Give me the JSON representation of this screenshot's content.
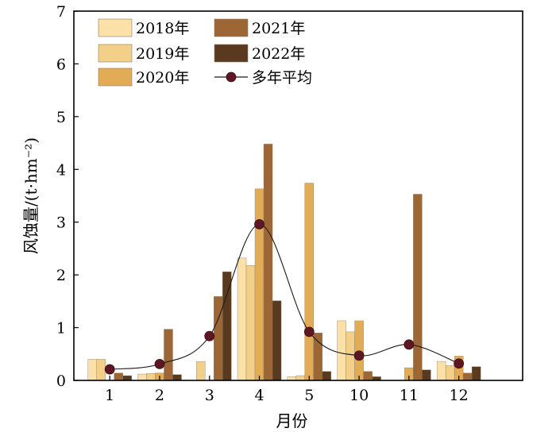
{
  "chart_data": {
    "type": "bar",
    "xlabel": "月份",
    "ylabel": "风蚀量/(t·hm⁻²)",
    "ylim": [
      0,
      7
    ],
    "yticks": [
      "0",
      "1",
      "2",
      "3",
      "4",
      "5",
      "6",
      "7"
    ],
    "categories": [
      "1",
      "2",
      "3",
      "4",
      "5",
      "10",
      "11",
      "12"
    ],
    "legend_position": "top-left",
    "grid": false,
    "series": [
      {
        "name": "2018年",
        "color": "#fbe0a8",
        "values": [
          0.4,
          0.12,
          0.0,
          2.32,
          0.07,
          1.13,
          0.0,
          0.36
        ]
      },
      {
        "name": "2019年",
        "color": "#f3d08a",
        "values": [
          0.4,
          0.13,
          0.36,
          2.18,
          0.09,
          0.92,
          0.0,
          0.28
        ]
      },
      {
        "name": "2020年",
        "color": "#e2ac56",
        "values": [
          0.0,
          0.14,
          0.0,
          3.63,
          3.74,
          1.13,
          0.24,
          0.46
        ]
      },
      {
        "name": "2021年",
        "color": "#9c6734",
        "values": [
          0.14,
          0.97,
          1.59,
          4.48,
          0.9,
          0.17,
          3.53,
          0.14
        ]
      },
      {
        "name": "2022年",
        "color": "#5a3a1e",
        "values": [
          0.09,
          0.11,
          2.06,
          1.51,
          0.17,
          0.07,
          0.2,
          0.26
        ]
      }
    ],
    "average": {
      "name": "多年平均",
      "color": "#5e1622",
      "values": [
        0.21,
        0.31,
        0.84,
        2.96,
        0.92,
        0.47,
        0.68,
        0.32
      ]
    }
  }
}
